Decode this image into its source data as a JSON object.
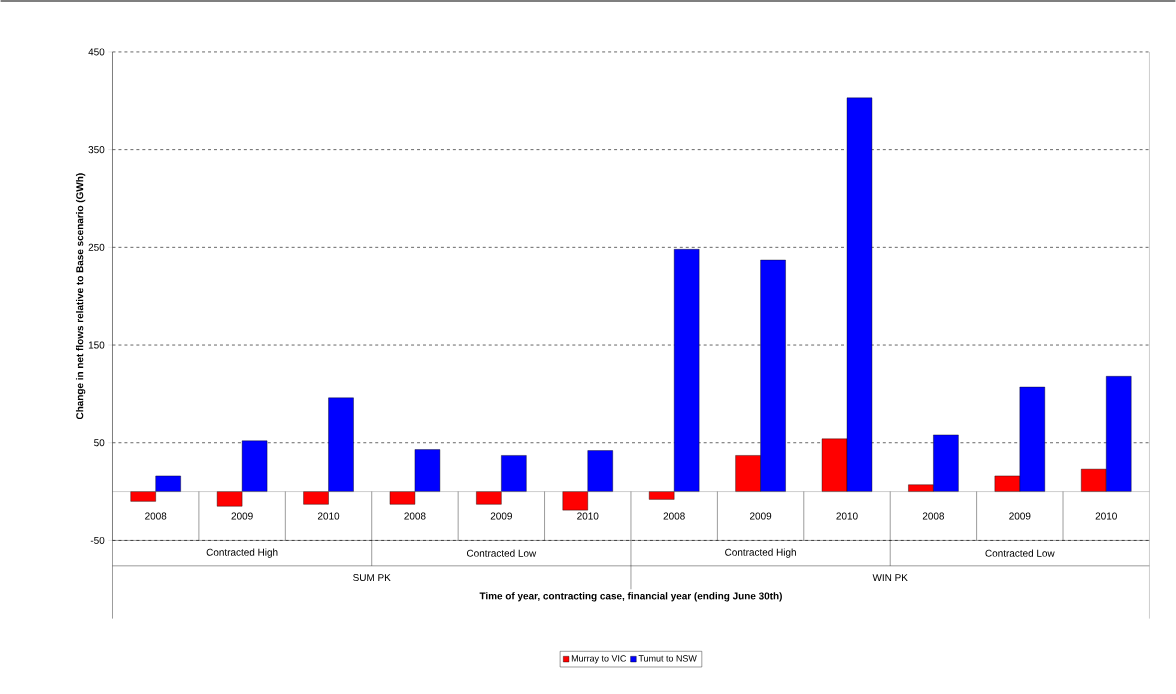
{
  "chart_data": {
    "type": "bar",
    "xlabel": "Time of year, contracting case, financial year (ending June 30th)",
    "ylabel": "Change in net flows relative to Base scenario (GWh)",
    "categories": [
      "2008",
      "2009",
      "2010",
      "2008",
      "2009",
      "2010",
      "2008",
      "2009",
      "2010",
      "2008",
      "2009",
      "2010"
    ],
    "series": [
      {
        "name": "Murray to VIC",
        "color": "#ff0000",
        "values": [
          -10,
          -15,
          -13,
          -13,
          -13,
          -19,
          -8,
          37,
          54,
          7,
          16,
          23
        ]
      },
      {
        "name": "Tumut to NSW",
        "color": "#0000ff",
        "values": [
          16,
          52,
          96,
          43,
          37,
          42,
          248,
          237,
          403,
          58,
          107,
          118
        ]
      }
    ],
    "ylim": [
      -50,
      450
    ],
    "yticks": [
      -50,
      50,
      150,
      250,
      350,
      450
    ],
    "grid": "y",
    "legend": "bottom",
    "annotations": [
      "Contracted High",
      "Contracted Low",
      "Contracted High",
      "Contracted Low",
      "SUM PK",
      "WIN PK"
    ]
  }
}
